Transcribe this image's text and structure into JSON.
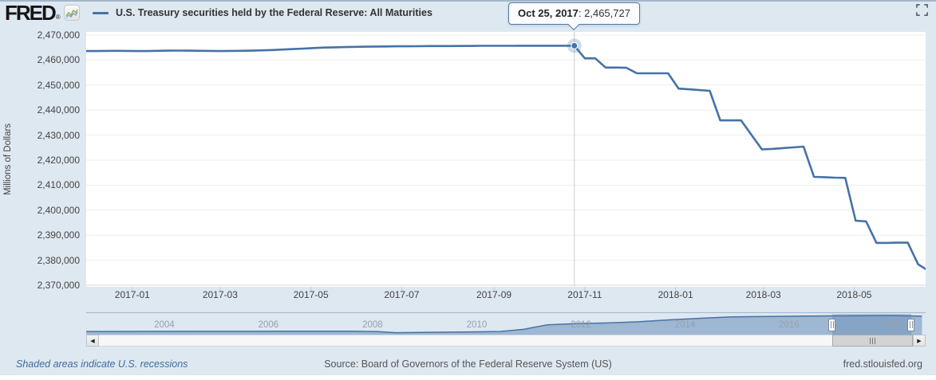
{
  "header": {
    "logo_text": "FRED",
    "logo_reg": "®",
    "legend_label": "U.S. Treasury securities held by the Federal Reserve: All Maturities"
  },
  "tooltip": {
    "date_label": "Oct 25, 2017",
    "separator": ": ",
    "value_label": "2,465,727"
  },
  "y_axis": {
    "title": "Millions of Dollars",
    "ticks": [
      "2,470,000",
      "2,460,000",
      "2,450,000",
      "2,440,000",
      "2,430,000",
      "2,420,000",
      "2,410,000",
      "2,400,000",
      "2,390,000",
      "2,380,000",
      "2,370,000"
    ]
  },
  "x_axis": {
    "ticks": [
      "2017-01",
      "2017-03",
      "2017-05",
      "2017-07",
      "2017-09",
      "2017-11",
      "2018-01",
      "2018-03",
      "2018-05"
    ],
    "tick_dates": [
      "2017-01-01",
      "2017-03-01",
      "2017-05-01",
      "2017-07-01",
      "2017-09-01",
      "2017-11-01",
      "2018-01-01",
      "2018-03-01",
      "2018-05-01"
    ]
  },
  "chart_data": [
    {
      "id": "main",
      "type": "line",
      "title": "U.S. Treasury securities held by the Federal Reserve: All Maturities",
      "xlabel": "",
      "ylabel": "Millions of Dollars",
      "ylim": [
        2370000,
        2470000
      ],
      "y_tick_step": 10000,
      "x_range": [
        "2016-12-01",
        "2018-06-18"
      ],
      "grid": true,
      "line_color": "#4572a7",
      "series": [
        {
          "name": "U.S. Treasury securities held by the Federal Reserve: All Maturities",
          "color": "#4572a7",
          "points": [
            [
              "2016-12-01",
              2463600
            ],
            [
              "2016-12-07",
              2463600
            ],
            [
              "2016-12-14",
              2463650
            ],
            [
              "2016-12-21",
              2463700
            ],
            [
              "2016-12-28",
              2463650
            ],
            [
              "2017-01-04",
              2463600
            ],
            [
              "2017-01-11",
              2463600
            ],
            [
              "2017-01-18",
              2463700
            ],
            [
              "2017-01-25",
              2463750
            ],
            [
              "2017-02-01",
              2463800
            ],
            [
              "2017-02-08",
              2463750
            ],
            [
              "2017-02-15",
              2463700
            ],
            [
              "2017-02-22",
              2463650
            ],
            [
              "2017-03-01",
              2463600
            ],
            [
              "2017-03-08",
              2463650
            ],
            [
              "2017-03-15",
              2463700
            ],
            [
              "2017-03-22",
              2463750
            ],
            [
              "2017-03-29",
              2463900
            ],
            [
              "2017-04-05",
              2464000
            ],
            [
              "2017-04-12",
              2464200
            ],
            [
              "2017-04-19",
              2464400
            ],
            [
              "2017-04-26",
              2464600
            ],
            [
              "2017-05-03",
              2464800
            ],
            [
              "2017-05-10",
              2465000
            ],
            [
              "2017-05-17",
              2465100
            ],
            [
              "2017-05-24",
              2465200
            ],
            [
              "2017-05-31",
              2465300
            ],
            [
              "2017-06-07",
              2465350
            ],
            [
              "2017-06-14",
              2465400
            ],
            [
              "2017-06-21",
              2465450
            ],
            [
              "2017-06-28",
              2465500
            ],
            [
              "2017-07-05",
              2465500
            ],
            [
              "2017-07-12",
              2465550
            ],
            [
              "2017-07-19",
              2465600
            ],
            [
              "2017-07-26",
              2465600
            ],
            [
              "2017-08-02",
              2465600
            ],
            [
              "2017-08-09",
              2465650
            ],
            [
              "2017-08-16",
              2465650
            ],
            [
              "2017-08-23",
              2465700
            ],
            [
              "2017-08-30",
              2465700
            ],
            [
              "2017-09-06",
              2465700
            ],
            [
              "2017-09-13",
              2465700
            ],
            [
              "2017-09-20",
              2465727
            ],
            [
              "2017-09-27",
              2465727
            ],
            [
              "2017-10-04",
              2465727
            ],
            [
              "2017-10-11",
              2465727
            ],
            [
              "2017-10-18",
              2465727
            ],
            [
              "2017-10-25",
              2465727
            ],
            [
              "2017-11-01",
              2460700
            ],
            [
              "2017-11-08",
              2460700
            ],
            [
              "2017-11-15",
              2457000
            ],
            [
              "2017-11-22",
              2457000
            ],
            [
              "2017-11-29",
              2456900
            ],
            [
              "2017-12-06",
              2454700
            ],
            [
              "2017-12-13",
              2454700
            ],
            [
              "2017-12-20",
              2454700
            ],
            [
              "2017-12-27",
              2454700
            ],
            [
              "2018-01-03",
              2448600
            ],
            [
              "2018-01-10",
              2448300
            ],
            [
              "2018-01-17",
              2448000
            ],
            [
              "2018-01-24",
              2447700
            ],
            [
              "2018-01-31",
              2435900
            ],
            [
              "2018-02-07",
              2435900
            ],
            [
              "2018-02-14",
              2435900
            ],
            [
              "2018-02-28",
              2424300
            ],
            [
              "2018-03-07",
              2424500
            ],
            [
              "2018-03-14",
              2424800
            ],
            [
              "2018-03-21",
              2425100
            ],
            [
              "2018-03-28",
              2425400
            ],
            [
              "2018-04-04",
              2413300
            ],
            [
              "2018-04-11",
              2413200
            ],
            [
              "2018-04-18",
              2413000
            ],
            [
              "2018-04-25",
              2412900
            ],
            [
              "2018-05-02",
              2395800
            ],
            [
              "2018-05-09",
              2395500
            ],
            [
              "2018-05-16",
              2386900
            ],
            [
              "2018-05-23",
              2386900
            ],
            [
              "2018-05-30",
              2387000
            ],
            [
              "2018-06-06",
              2387000
            ],
            [
              "2018-06-13",
              2378300
            ],
            [
              "2018-06-18",
              2376500
            ]
          ]
        }
      ],
      "highlight_point": {
        "date": "2017-10-25",
        "value": 2465727,
        "label": "Oct 25, 2017: 2,465,727"
      }
    },
    {
      "id": "navigator",
      "type": "area",
      "x_range": [
        2002.5,
        2018.62
      ],
      "ylim": [
        0,
        2470000
      ],
      "color": "#4572a7",
      "fill_opacity": 0.42,
      "year_labels": [
        "2004",
        "2006",
        "2008",
        "2010",
        "2012",
        "2014",
        "2016",
        "2018"
      ],
      "selection": [
        2016.82,
        2018.33
      ],
      "points": [
        [
          2002.5,
          560000
        ],
        [
          2003.5,
          570000
        ],
        [
          2004.5,
          575000
        ],
        [
          2005.5,
          580000
        ],
        [
          2006.5,
          585000
        ],
        [
          2007.6,
          590000
        ],
        [
          2008.1,
          555000
        ],
        [
          2008.45,
          420000
        ],
        [
          2009.1,
          465000
        ],
        [
          2009.9,
          515000
        ],
        [
          2010.45,
          560000
        ],
        [
          2010.9,
          820000
        ],
        [
          2011.35,
          1360000
        ],
        [
          2011.9,
          1490000
        ],
        [
          2012.5,
          1580000
        ],
        [
          2013.1,
          1720000
        ],
        [
          2013.7,
          1950000
        ],
        [
          2014.3,
          2140000
        ],
        [
          2014.9,
          2310000
        ],
        [
          2015.6,
          2350000
        ],
        [
          2016.3,
          2390000
        ],
        [
          2017.1,
          2435000
        ],
        [
          2017.85,
          2465000
        ],
        [
          2018.15,
          2455000
        ],
        [
          2018.55,
          2380000
        ]
      ]
    }
  ],
  "scrollbar": {
    "left_arrow": "◀",
    "right_arrow": "▶"
  },
  "footer": {
    "recessions_note": "Shaded areas indicate U.S. recessions",
    "source": "Source: Board of Governors of the Federal Reserve System (US)",
    "site": "fred.stlouisfed.org"
  },
  "colors": {
    "background": "#dee8f1",
    "plot_background": "#ffffff",
    "gridline": "#ededed",
    "line": "#4572a7",
    "tooltip_border": "#4f7aab",
    "crosshair": "#cccccc",
    "axis_text": "#444444",
    "footer_link": "#3d6d9e"
  }
}
